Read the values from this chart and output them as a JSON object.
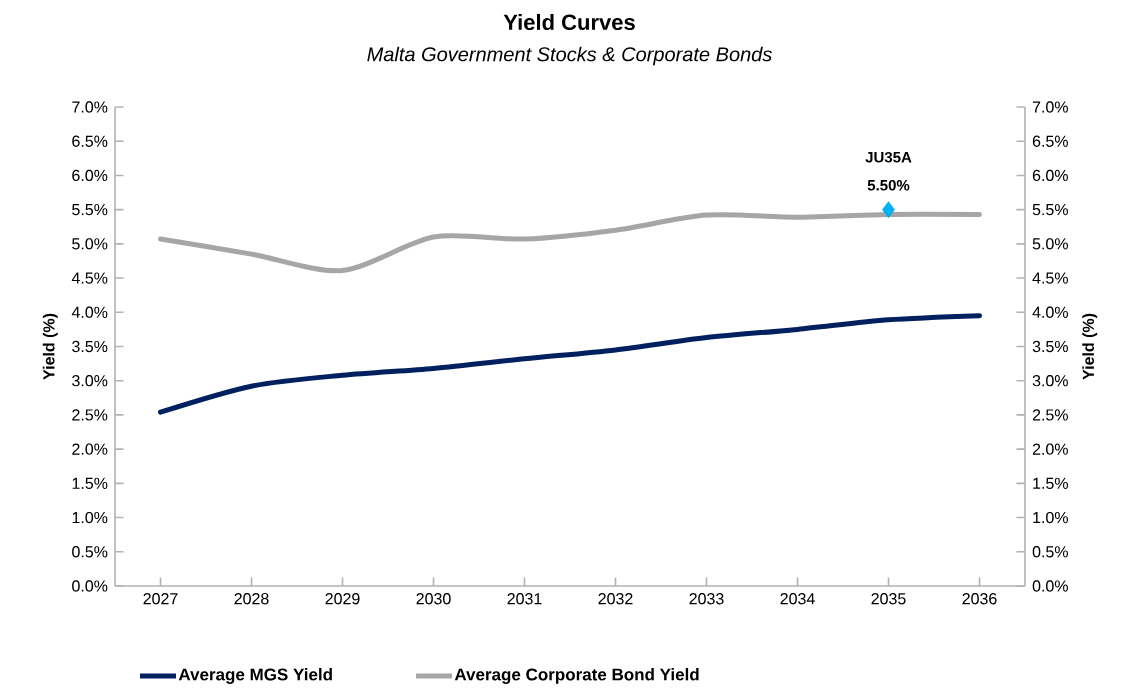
{
  "chart_data": {
    "type": "line",
    "title": "Yield Curves",
    "subtitle": "Malta Government Stocks & Corporate Bonds",
    "ylabel": "Yield (%)",
    "y2label": "Yield (%)",
    "categories": [
      "2027",
      "2028",
      "2029",
      "2030",
      "2031",
      "2032",
      "2033",
      "2034",
      "2035",
      "2036"
    ],
    "series": [
      {
        "name": "Average MGS Yield",
        "color": "#002060",
        "values": [
          2.54,
          2.92,
          3.08,
          3.18,
          3.32,
          3.45,
          3.63,
          3.75,
          3.89,
          3.95
        ],
        "marker": "none",
        "line_style": "solid"
      },
      {
        "name": "Average Corporate Bond Yield",
        "color": "#a6a6a6",
        "values": [
          5.07,
          4.85,
          4.61,
          5.1,
          5.07,
          5.2,
          5.42,
          5.39,
          5.43,
          5.43
        ],
        "marker": "none",
        "line_style": "solid"
      },
      {
        "type": "scatter",
        "color": "#00b0f0",
        "values": [
          null,
          null,
          null,
          null,
          null,
          null,
          null,
          null,
          5.5,
          null
        ],
        "value_labels": [
          null,
          null,
          null,
          null,
          null,
          null,
          null,
          null,
          "5.50%",
          null
        ],
        "marker": "diamond"
      }
    ],
    "ylim": [
      0,
      7
    ],
    "yticks": [
      {
        "value": 0,
        "label": "0.0%"
      },
      {
        "value": 0.5,
        "label": "0.5%"
      },
      {
        "value": 1,
        "label": "1.0%"
      },
      {
        "value": 1.5,
        "label": "1.5%"
      },
      {
        "value": 2,
        "label": "2.0%"
      },
      {
        "value": 2.5,
        "label": "2.5%"
      },
      {
        "value": 3,
        "label": "3.0%"
      },
      {
        "value": 3.5,
        "label": "3.5%"
      },
      {
        "value": 4,
        "label": "4.0%"
      },
      {
        "value": 4.5,
        "label": "4.5%"
      },
      {
        "value": 5,
        "label": "5.0%"
      },
      {
        "value": 5.5,
        "label": "5.5%"
      },
      {
        "value": 6,
        "label": "6.0%"
      },
      {
        "value": 6.5,
        "label": "6.5%"
      },
      {
        "value": 7,
        "label": "7.0%"
      }
    ],
    "y2lim": [
      0,
      7
    ],
    "y2ticks": [
      {
        "value": 0,
        "label": "0.0%"
      },
      {
        "value": 0.5,
        "label": "0.5%"
      },
      {
        "value": 1,
        "label": "1.0%"
      },
      {
        "value": 1.5,
        "label": "1.5%"
      },
      {
        "value": 2,
        "label": "2.0%"
      },
      {
        "value": 2.5,
        "label": "2.5%"
      },
      {
        "value": 3,
        "label": "3.0%"
      },
      {
        "value": 3.5,
        "label": "3.5%"
      },
      {
        "value": 4,
        "label": "4.0%"
      },
      {
        "value": 4.5,
        "label": "4.5%"
      },
      {
        "value": 5,
        "label": "5.0%"
      },
      {
        "value": 5.5,
        "label": "5.5%"
      },
      {
        "value": 6,
        "label": "6.0%"
      },
      {
        "value": 6.5,
        "label": "6.5%"
      },
      {
        "value": 7,
        "label": "7.0%"
      }
    ],
    "annotations": [
      "JU35A"
    ],
    "grid": false,
    "legend": "bottom"
  }
}
